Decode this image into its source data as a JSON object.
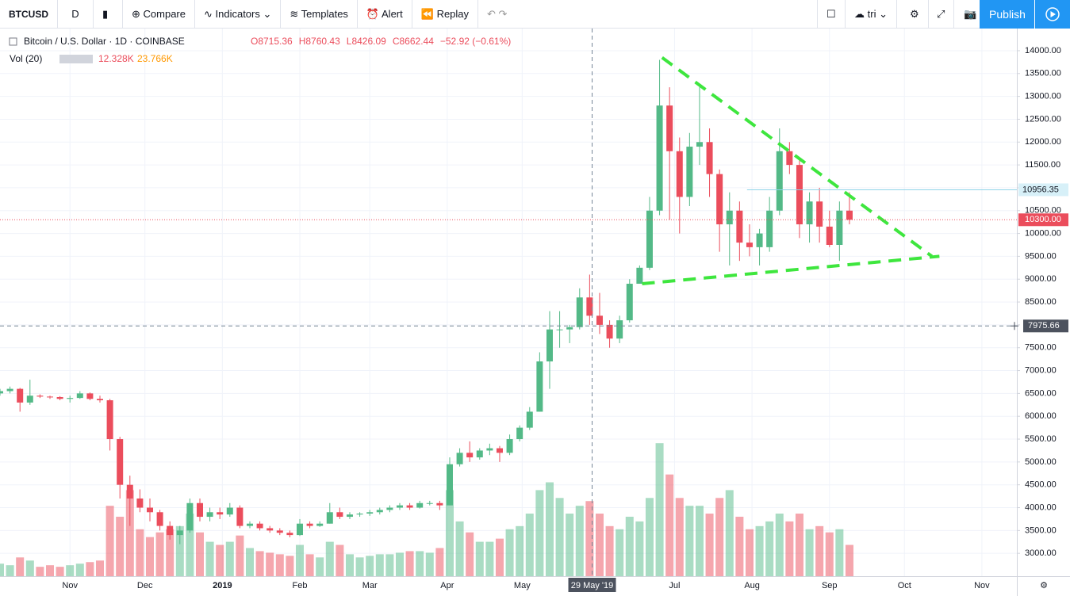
{
  "toolbar": {
    "symbol": "BTCUSD",
    "interval": "D",
    "buttons": [
      "Compare",
      "Indicators",
      "Templates",
      "Alert",
      "Replay"
    ],
    "layout": "tri",
    "publish": "Publish"
  },
  "legend": {
    "title": "Bitcoin / U.S. Dollar · 1D · COINBASE",
    "open": "O8715.36",
    "high": "H8760.43",
    "low": "L8426.09",
    "close": "C8662.44",
    "change": "−52.92 (−0.61%)",
    "volume_title": "Vol (20)",
    "volume_value": "12.328K",
    "volume_ma": "23.766K"
  },
  "chart_data": {
    "type": "candlestick",
    "xlim": [
      -28,
      379
    ],
    "xticks": [
      {
        "value": 0,
        "label": "Nov"
      },
      {
        "value": 30,
        "label": "Dec"
      },
      {
        "value": 61,
        "label": "2019"
      },
      {
        "value": 92,
        "label": "Feb"
      },
      {
        "value": 120,
        "label": "Mar"
      },
      {
        "value": 151,
        "label": "Apr"
      },
      {
        "value": 181,
        "label": "May"
      },
      {
        "value": 242,
        "label": "Jul"
      },
      {
        "value": 273,
        "label": "Aug"
      },
      {
        "value": 304,
        "label": "Sep"
      },
      {
        "value": 334,
        "label": "Oct"
      },
      {
        "value": 365,
        "label": "Nov"
      }
    ],
    "ylim": [
      2500,
      14485
    ],
    "yticks": [
      {
        "value": 3000,
        "label": "3000.00"
      },
      {
        "value": 3500,
        "label": "3500.00"
      },
      {
        "value": 4000,
        "label": "4000.00"
      },
      {
        "value": 4500,
        "label": "4500.00"
      },
      {
        "value": 5000,
        "label": "5000.00"
      },
      {
        "value": 5500,
        "label": "5500.00"
      },
      {
        "value": 6000,
        "label": "6000.00"
      },
      {
        "value": 6500,
        "label": "6500.00"
      },
      {
        "value": 7000,
        "label": "7000.00"
      },
      {
        "value": 7500,
        "label": "7500.00"
      },
      {
        "value": 8000,
        "label": "8000.00"
      },
      {
        "value": 8500,
        "label": "8500.00"
      },
      {
        "value": 9000,
        "label": "9000.00"
      },
      {
        "value": 9500,
        "label": "9500.00"
      },
      {
        "value": 10000,
        "label": "10000.00"
      },
      {
        "value": 10500,
        "label": "10500.00"
      },
      {
        "value": 11000,
        "label": "11000.00"
      },
      {
        "value": 11500,
        "label": "11500.00"
      },
      {
        "value": 12000,
        "label": "12000.00"
      },
      {
        "value": 12500,
        "label": "12500.00"
      },
      {
        "value": 13000,
        "label": "13000.00"
      },
      {
        "value": 13500,
        "label": "13500.00"
      },
      {
        "value": 14000,
        "label": "14000.00"
      }
    ],
    "grid": true,
    "up_color": "#53b987",
    "down_color": "#eb4d5c",
    "volume_lim": [
      0,
      350
    ],
    "x": [
      -28,
      -24,
      -20,
      -16,
      -12,
      -8,
      -4,
      0,
      4,
      8,
      12,
      16,
      20,
      24,
      28,
      32,
      36,
      40,
      44,
      48,
      52,
      56,
      60,
      64,
      68,
      72,
      76,
      80,
      84,
      88,
      92,
      96,
      100,
      104,
      108,
      112,
      116,
      120,
      124,
      128,
      132,
      136,
      140,
      144,
      148,
      152,
      156,
      160,
      164,
      168,
      172,
      176,
      180,
      184,
      188,
      192,
      196,
      200,
      204,
      208,
      212,
      216,
      220,
      224,
      228,
      232,
      236,
      240,
      244,
      248,
      252,
      256,
      260,
      264,
      268,
      272,
      276,
      280,
      284,
      288,
      292,
      296,
      300,
      304,
      308,
      312
    ],
    "candles": [
      [
        6500,
        6600,
        6450,
        6550
      ],
      [
        6550,
        6650,
        6500,
        6600
      ],
      [
        6600,
        6620,
        6100,
        6300
      ],
      [
        6300,
        6800,
        6250,
        6450
      ],
      [
        6450,
        6480,
        6400,
        6430
      ],
      [
        6430,
        6450,
        6380,
        6420
      ],
      [
        6420,
        6440,
        6350,
        6380
      ],
      [
        6380,
        6450,
        6300,
        6400
      ],
      [
        6400,
        6550,
        6380,
        6500
      ],
      [
        6500,
        6520,
        6350,
        6380
      ],
      [
        6380,
        6450,
        6300,
        6350
      ],
      [
        6350,
        6380,
        5250,
        5500
      ],
      [
        5500,
        5550,
        4200,
        4500
      ],
      [
        4500,
        4700,
        3600,
        4200
      ],
      [
        4200,
        4400,
        3900,
        4000
      ],
      [
        4000,
        4200,
        3700,
        3900
      ],
      [
        3900,
        3950,
        3500,
        3600
      ],
      [
        3600,
        3700,
        3300,
        3400
      ],
      [
        3400,
        3600,
        3200,
        3500
      ],
      [
        3500,
        4200,
        3450,
        4100
      ],
      [
        4100,
        4200,
        3700,
        3800
      ],
      [
        3800,
        4000,
        3700,
        3900
      ],
      [
        3900,
        4000,
        3750,
        3850
      ],
      [
        3850,
        4100,
        3800,
        4000
      ],
      [
        4000,
        4050,
        3550,
        3600
      ],
      [
        3600,
        3700,
        3550,
        3650
      ],
      [
        3650,
        3700,
        3500,
        3550
      ],
      [
        3550,
        3600,
        3450,
        3500
      ],
      [
        3500,
        3550,
        3400,
        3450
      ],
      [
        3450,
        3500,
        3350,
        3400
      ],
      [
        3400,
        3750,
        3380,
        3650
      ],
      [
        3650,
        3700,
        3550,
        3600
      ],
      [
        3600,
        3700,
        3580,
        3650
      ],
      [
        3650,
        4100,
        3650,
        3900
      ],
      [
        3900,
        4000,
        3750,
        3800
      ],
      [
        3800,
        3900,
        3750,
        3850
      ],
      [
        3850,
        3900,
        3800,
        3870
      ],
      [
        3870,
        3950,
        3820,
        3900
      ],
      [
        3900,
        4000,
        3850,
        3950
      ],
      [
        3950,
        4050,
        3900,
        4000
      ],
      [
        4000,
        4100,
        3950,
        4050
      ],
      [
        4050,
        4100,
        3950,
        4000
      ],
      [
        4000,
        4150,
        3980,
        4100
      ],
      [
        4100,
        4150,
        4050,
        4100
      ],
      [
        4100,
        4150,
        3950,
        4050
      ],
      [
        4050,
        5100,
        4050,
        4950
      ],
      [
        4950,
        5300,
        4900,
        5200
      ],
      [
        5200,
        5450,
        5000,
        5100
      ],
      [
        5100,
        5300,
        5050,
        5250
      ],
      [
        5250,
        5400,
        5150,
        5300
      ],
      [
        5300,
        5350,
        5000,
        5200
      ],
      [
        5200,
        5600,
        5150,
        5500
      ],
      [
        5500,
        5800,
        5450,
        5750
      ],
      [
        5750,
        6200,
        5700,
        6100
      ],
      [
        6100,
        7400,
        6100,
        7200
      ],
      [
        7200,
        8300,
        6600,
        7900
      ],
      [
        7900,
        8300,
        7500,
        7900
      ],
      [
        7900,
        8000,
        7600,
        7950
      ],
      [
        7950,
        8800,
        7900,
        8600
      ],
      [
        8600,
        9100,
        8000,
        8200
      ],
      [
        8200,
        8700,
        7800,
        8000
      ],
      [
        8000,
        8100,
        7500,
        7700
      ],
      [
        7700,
        8200,
        7600,
        8100
      ],
      [
        8100,
        9000,
        8050,
        8900
      ],
      [
        8900,
        9300,
        8900,
        9250
      ],
      [
        9250,
        10800,
        9200,
        10500
      ],
      [
        10500,
        13800,
        10400,
        12800
      ],
      [
        12800,
        13200,
        10300,
        11800
      ],
      [
        11800,
        12100,
        10000,
        10800
      ],
      [
        10800,
        12200,
        10600,
        11900
      ],
      [
        11900,
        13200,
        11500,
        12000
      ],
      [
        12000,
        12300,
        10800,
        11300
      ],
      [
        11300,
        11400,
        9600,
        10200
      ],
      [
        10200,
        10900,
        9300,
        10500
      ],
      [
        10500,
        10700,
        9400,
        9800
      ],
      [
        9800,
        10200,
        9500,
        9700
      ],
      [
        9700,
        10100,
        9300,
        10000
      ],
      [
        9700,
        10800,
        9600,
        10500
      ],
      [
        10500,
        12300,
        10400,
        11800
      ],
      [
        11800,
        12000,
        11300,
        11500
      ],
      [
        11500,
        11600,
        9900,
        10200
      ],
      [
        10200,
        10900,
        9800,
        10700
      ],
      [
        10700,
        11000,
        9800,
        10150
      ],
      [
        10150,
        10500,
        9700,
        9750
      ],
      [
        9750,
        10700,
        9400,
        10500
      ],
      [
        10500,
        10900,
        10200,
        10300
      ]
    ],
    "volume": [
      8,
      7,
      12,
      10,
      6,
      7,
      6,
      7,
      8,
      9,
      10,
      45,
      38,
      55,
      30,
      25,
      28,
      30,
      32,
      40,
      28,
      22,
      20,
      22,
      26,
      18,
      16,
      15,
      14,
      13,
      20,
      14,
      12,
      22,
      20,
      14,
      12,
      13,
      14,
      14,
      15,
      16,
      16,
      15,
      18,
      55,
      35,
      28,
      22,
      22,
      24,
      30,
      32,
      40,
      55,
      60,
      50,
      40,
      45,
      48,
      40,
      32,
      30,
      38,
      35,
      50,
      85,
      65,
      50,
      45,
      45,
      40,
      50,
      55,
      38,
      30,
      32,
      35,
      40,
      35,
      40,
      30,
      32,
      28,
      30,
      20
    ],
    "trendlines": [
      {
        "color": "#3ee63e",
        "points": [
          [
            237,
            13850
          ],
          [
            345,
            9500
          ]
        ]
      },
      {
        "color": "#3ee63e",
        "points": [
          [
            229,
            8900
          ],
          [
            348,
            9500
          ]
        ]
      }
    ],
    "horizontal_line": {
      "value": 10956.35,
      "label": "10956.35",
      "start": 271,
      "color": "#8fd3e8"
    },
    "last_price": {
      "value": 10300,
      "label": "10300.00"
    },
    "crosshair": {
      "x": 209,
      "x_label": "29 May '19",
      "y": 7975.66,
      "y_label": "7975.66"
    }
  }
}
